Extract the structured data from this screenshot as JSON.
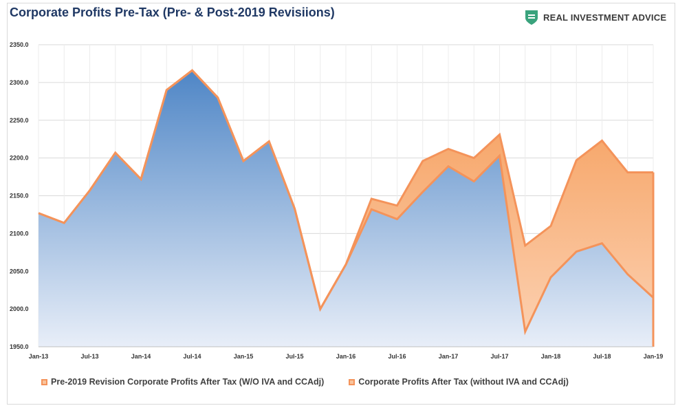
{
  "chart_data": {
    "type": "area",
    "title": "Corporate Profits Pre-Tax (Pre- & Post-2019 Revisiions)",
    "xlabel": "",
    "ylabel": "",
    "ylim": [
      1950,
      2350
    ],
    "y_ticks": [
      "1950.0",
      "2000.0",
      "2050.0",
      "2100.0",
      "2150.0",
      "2200.0",
      "2250.0",
      "2300.0",
      "2350.0"
    ],
    "y_tick_values": [
      1950,
      2000,
      2050,
      2100,
      2150,
      2200,
      2250,
      2300,
      2350
    ],
    "x_tick_labels": [
      "Jan-13",
      "Jul-13",
      "Jan-14",
      "Jul-14",
      "Jan-15",
      "Jul-15",
      "Jan-16",
      "Jul-16",
      "Jan-17",
      "Jul-17",
      "Jan-18",
      "Jul-18",
      "Jan-19"
    ],
    "categories": [
      "Jan-13",
      "Apr-13",
      "Jul-13",
      "Oct-13",
      "Jan-14",
      "Apr-14",
      "Jul-14",
      "Oct-14",
      "Jan-15",
      "Apr-15",
      "Jul-15",
      "Oct-15",
      "Jan-16",
      "Apr-16",
      "Jul-16",
      "Oct-16",
      "Jan-17",
      "Apr-17",
      "Jul-17",
      "Oct-17",
      "Jan-18",
      "Apr-18",
      "Jul-18",
      "Oct-18",
      "Jan-19"
    ],
    "series": [
      {
        "name": "Pre-2019 Revision Corporate Profits After Tax (W/O IVA and CCAdj)",
        "values": [
          2127,
          2114,
          2157,
          2207,
          2172,
          2290,
          2316,
          2280,
          2196,
          2222,
          2133,
          2000,
          2059,
          2146,
          2137,
          2196,
          2212,
          2200,
          2231,
          2084,
          2110,
          2197,
          2223,
          2181,
          2181
        ]
      },
      {
        "name": "Corporate Profits After Tax (without IVA and CCAdj)",
        "values": [
          2127,
          2114,
          2157,
          2207,
          2172,
          2290,
          2316,
          2280,
          2196,
          2222,
          2133,
          2000,
          2059,
          2132,
          2119,
          2155,
          2189,
          2169,
          2203,
          1970,
          2042,
          2076,
          2087,
          2046,
          2015
        ]
      }
    ],
    "legend_position": "bottom",
    "grid": true
  },
  "brand": {
    "name": "REAL INVESTMENT ADVICE",
    "accent_color": "#3aa37d"
  },
  "colors": {
    "line": "#f4935a",
    "fill_orange": "#f7a468",
    "fill_blue_top": "#4e86c6",
    "fill_blue_bottom": "#e6edf7"
  }
}
